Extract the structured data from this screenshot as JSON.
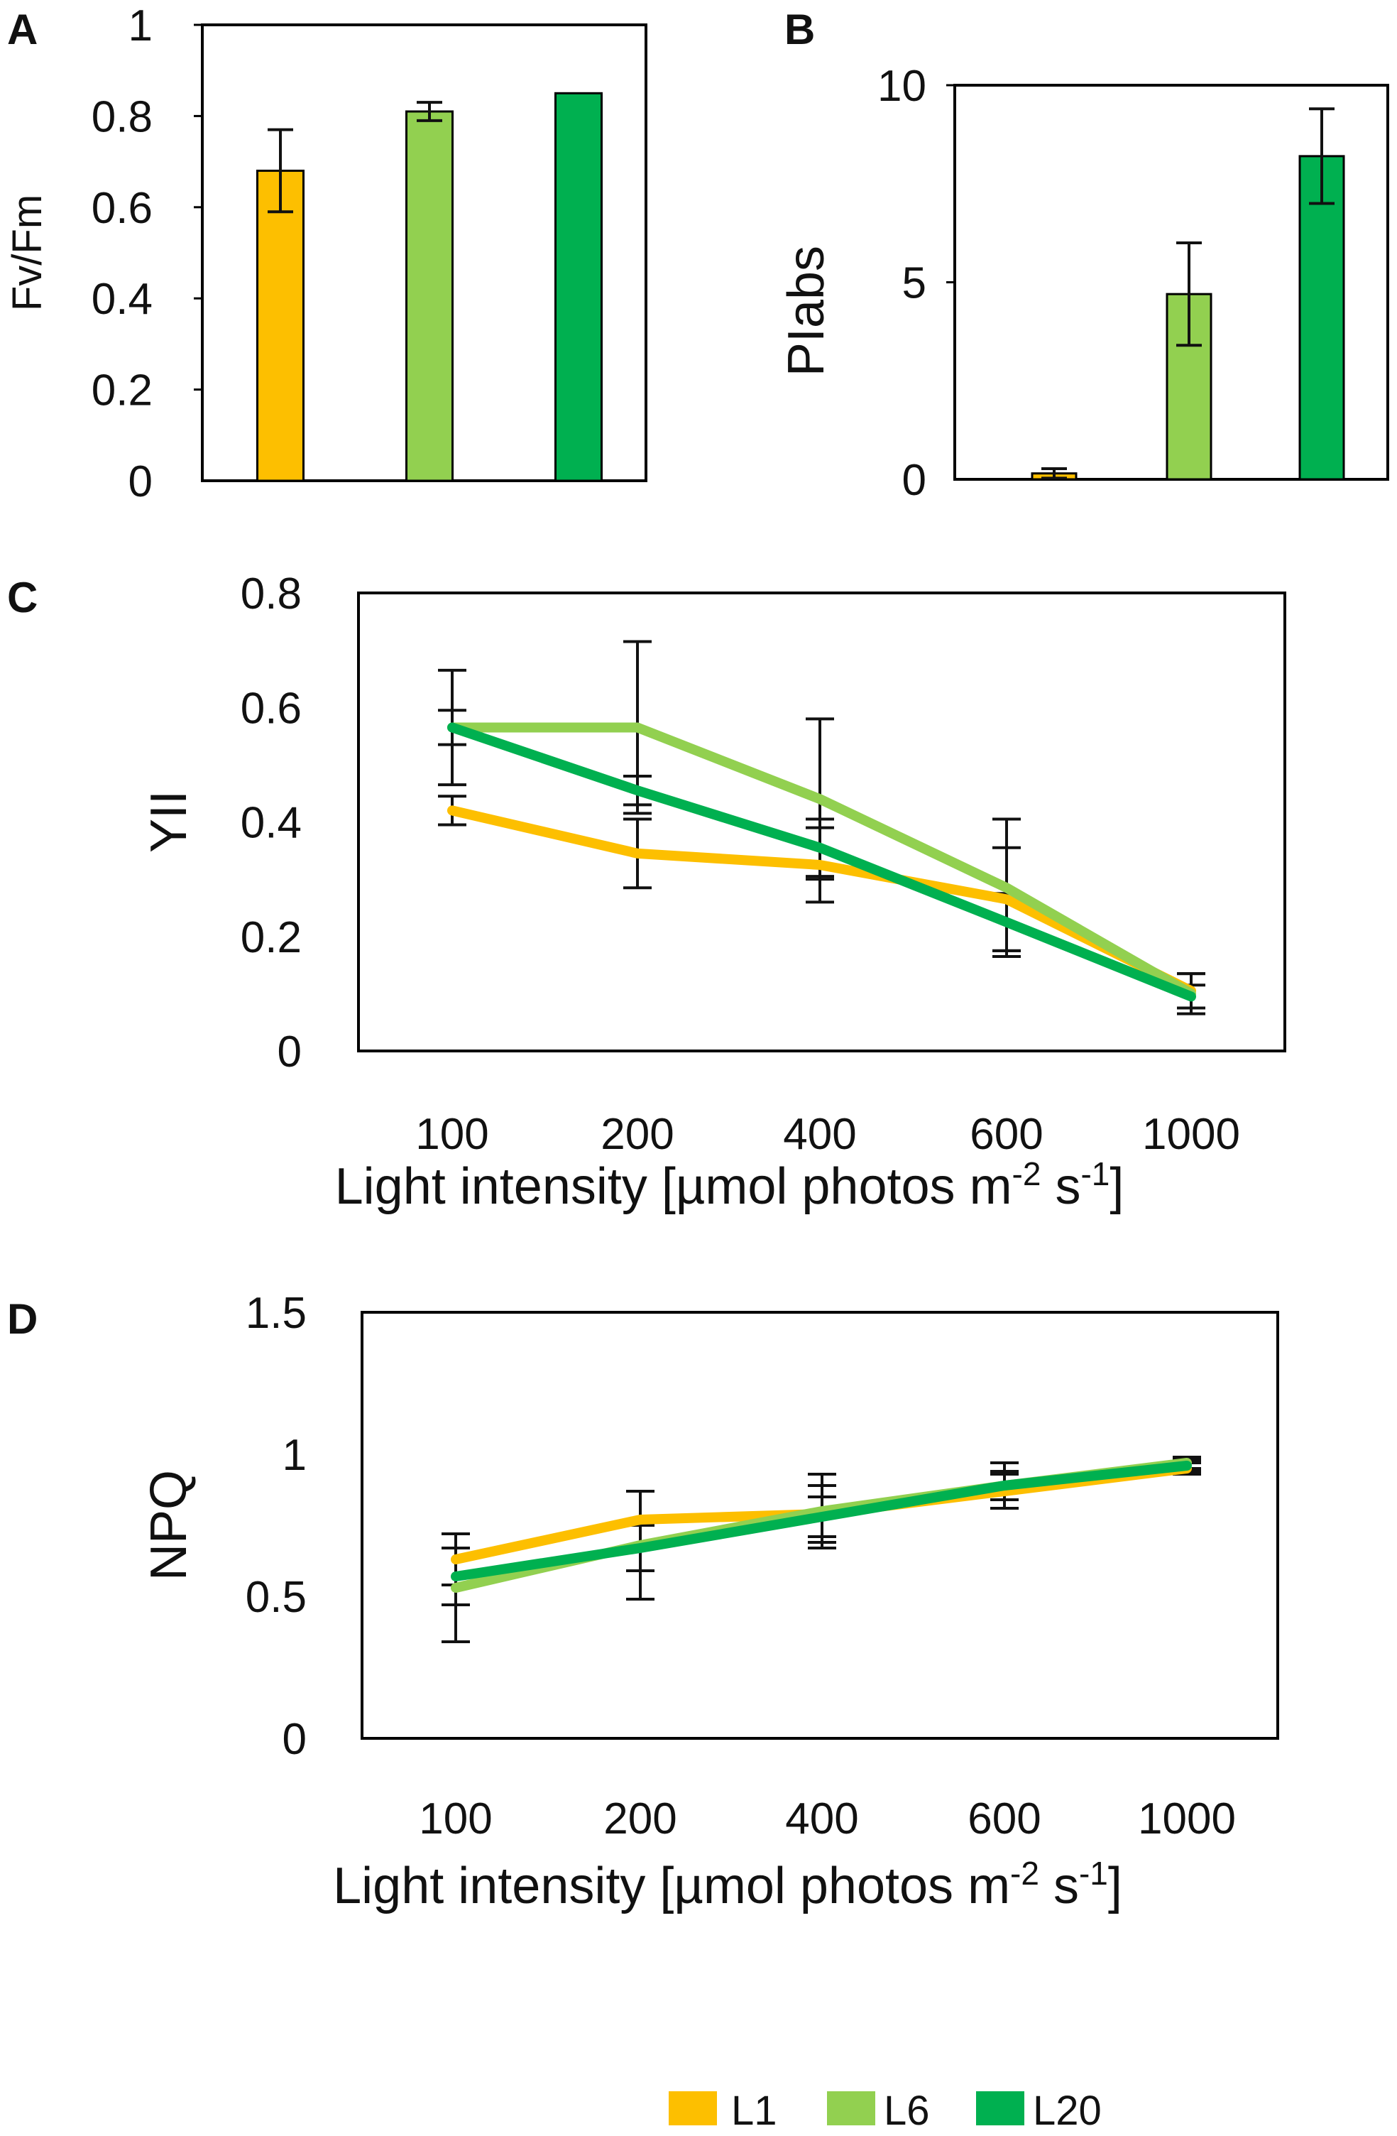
{
  "figure": {
    "colors": {
      "L1": "#FDBF00",
      "L6": "#92D050",
      "L20": "#00B050",
      "error_bar": "#111111",
      "frame": "#000000"
    },
    "legend": {
      "items": [
        {
          "key": "L1",
          "label": "L1"
        },
        {
          "key": "L6",
          "label": "L6"
        },
        {
          "key": "L20",
          "label": "L20"
        }
      ]
    }
  },
  "chart_data": [
    {
      "panel": "A",
      "type": "bar",
      "title": "",
      "xlabel": "",
      "ylabel": "Fv/Fm",
      "ylim": [
        0,
        1
      ],
      "yticks": [
        "0",
        "0.2",
        "0.4",
        "0.6",
        "0.8",
        "1"
      ],
      "categories": [
        "L1",
        "L6",
        "L20"
      ],
      "values": [
        0.68,
        0.81,
        0.85
      ],
      "errors": [
        0.09,
        0.02,
        0.0
      ]
    },
    {
      "panel": "B",
      "type": "bar",
      "title": "",
      "xlabel": "",
      "ylabel": "PIabs",
      "ylim": [
        0,
        10
      ],
      "yticks": [
        "0",
        "5",
        "10"
      ],
      "categories": [
        "L1",
        "L6",
        "L20"
      ],
      "values": [
        0.15,
        4.7,
        8.2
      ],
      "errors": [
        0.12,
        1.3,
        1.2
      ]
    },
    {
      "panel": "C",
      "type": "line",
      "title": "",
      "xlabel": "Light intensity [µmol photos m",
      "xlabel_sup1": "-2",
      "xlabel_mid": " s",
      "xlabel_sup2": "-1",
      "xlabel_end": "]",
      "ylabel": "YII",
      "ylim": [
        0,
        0.8
      ],
      "yticks": [
        "0",
        "0.2",
        "0.4",
        "0.6",
        "0.8"
      ],
      "x": [
        "100",
        "200",
        "400",
        "600",
        "1000"
      ],
      "series": [
        {
          "name": "L1",
          "values": [
            0.42,
            0.345,
            0.325,
            0.265,
            0.105
          ],
          "errors": [
            0.025,
            0.06,
            0.065,
            0.09,
            0.03
          ]
        },
        {
          "name": "L6",
          "values": [
            0.565,
            0.565,
            0.44,
            0.285,
            0.1
          ],
          "errors": [
            0.1,
            0.15,
            0.14,
            0.12,
            0.035
          ]
        },
        {
          "name": "L20",
          "values": [
            0.565,
            0.455,
            0.355,
            0.225,
            0.095
          ],
          "errors": [
            0.03,
            0.025,
            0.05,
            0.05,
            0.02
          ]
        }
      ]
    },
    {
      "panel": "D",
      "type": "line",
      "title": "",
      "xlabel": "Light intensity [µmol photos m",
      "xlabel_sup1": "-2",
      "xlabel_mid": " s",
      "xlabel_sup2": "-1",
      "xlabel_end": "]",
      "ylabel": "NPQ",
      "ylim": [
        0,
        1.5
      ],
      "yticks": [
        "0",
        "0.5",
        "1",
        "1.5"
      ],
      "x": [
        "100",
        "200",
        "400",
        "600",
        "1000"
      ],
      "series": [
        {
          "name": "L1",
          "values": [
            0.63,
            0.77,
            0.79,
            0.87,
            0.95
          ],
          "errors": [
            0.09,
            0.1,
            0.1,
            0.06,
            0.02
          ]
        },
        {
          "name": "L6",
          "values": [
            0.53,
            0.68,
            0.8,
            0.89,
            0.97
          ],
          "errors": [
            0.19,
            0.19,
            0.13,
            0.08,
            0.02
          ]
        },
        {
          "name": "L20",
          "values": [
            0.57,
            0.67,
            0.78,
            0.89,
            0.96
          ],
          "errors": [
            0.1,
            0.08,
            0.07,
            0.05,
            0.02
          ]
        }
      ]
    }
  ]
}
